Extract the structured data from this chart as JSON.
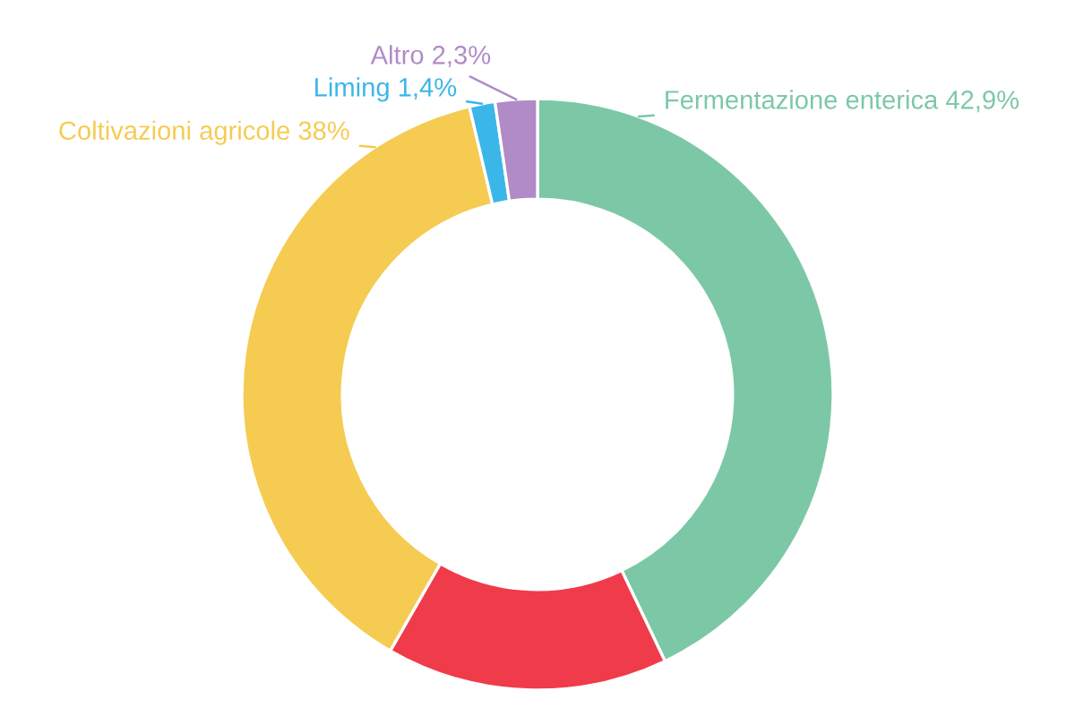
{
  "chart_data": {
    "type": "donut",
    "categories": [
      "Fermentazione enterica",
      null,
      "Coltivazioni agricole",
      "Liming",
      "Altro"
    ],
    "values": [
      42.9,
      15.4,
      38,
      1.4,
      2.3
    ],
    "colors": [
      "#7cc8a6",
      "#ef3b4a",
      "#f5cb52",
      "#3bb6e9",
      "#b08bc7"
    ],
    "value_labels": [
      "42,9%",
      null,
      "38%",
      "1,4%",
      "2,3%"
    ]
  }
}
